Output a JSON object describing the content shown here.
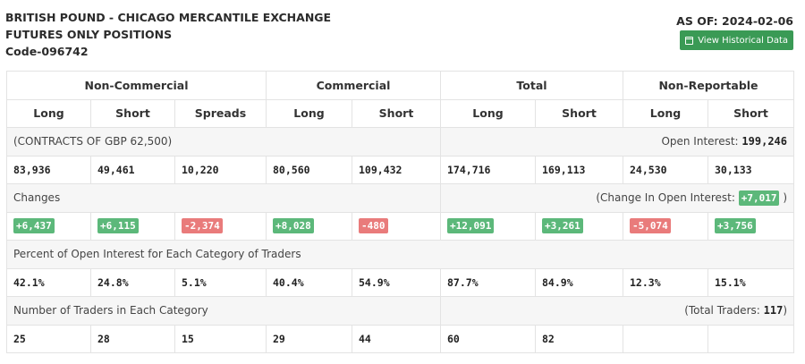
{
  "header": {
    "title_line1": "BRITISH POUND - CHICAGO MERCANTILE EXCHANGE",
    "title_line2": "FUTURES ONLY POSITIONS",
    "code": "Code-096742",
    "as_of": "AS OF: 2024-02-06",
    "history_button": "View Historical Data"
  },
  "groups": [
    "Non-Commercial",
    "Commercial",
    "Total",
    "Non-Reportable"
  ],
  "subheaders": [
    "Long",
    "Short",
    "Spreads",
    "Long",
    "Short",
    "Long",
    "Short",
    "Long",
    "Short"
  ],
  "contracts": {
    "label": "(CONTRACTS OF GBP 62,500)",
    "oi_label": "Open Interest:",
    "oi_value": "199,246",
    "values": [
      "83,936",
      "49,461",
      "10,220",
      "80,560",
      "109,432",
      "174,716",
      "169,113",
      "24,530",
      "30,133"
    ]
  },
  "changes": {
    "label": "Changes",
    "oi_prefix": "(Change In Open Interest:",
    "oi_value": "+7,017",
    "oi_suffix": ")",
    "values": [
      "+6,437",
      "+6,115",
      "-2,374",
      "+8,028",
      "-480",
      "+12,091",
      "+3,261",
      "-5,074",
      "+3,756"
    ]
  },
  "percent": {
    "label": "Percent of Open Interest for Each Category of Traders",
    "values": [
      "42.1%",
      "24.8%",
      "5.1%",
      "40.4%",
      "54.9%",
      "87.7%",
      "84.9%",
      "12.3%",
      "15.1%"
    ]
  },
  "traders": {
    "label": "Number of Traders in Each Category",
    "total_prefix": "(Total Traders:",
    "total_value": "117",
    "total_suffix": ")",
    "values": [
      "25",
      "28",
      "15",
      "29",
      "44",
      "60",
      "82",
      "",
      ""
    ]
  },
  "colors": {
    "positive": "#5cb87a",
    "negative": "#e97b7b",
    "button": "#3a9a55"
  }
}
